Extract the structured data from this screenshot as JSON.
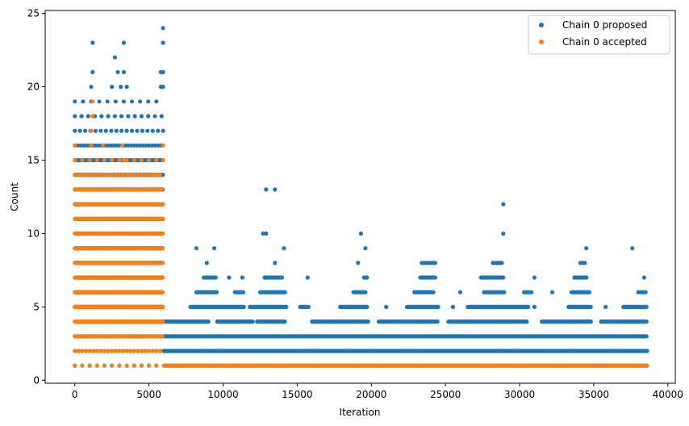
{
  "chart_data": {
    "type": "scatter",
    "title": "",
    "xlabel": "Iteration",
    "ylabel": "Count",
    "xlim": [
      -2000,
      40500
    ],
    "ylim": [
      -0.2,
      25.2
    ],
    "x_ticks": [
      0,
      5000,
      10000,
      15000,
      20000,
      25000,
      30000,
      35000,
      40000
    ],
    "x_tick_labels": [
      "0",
      "5000",
      "10000",
      "15000",
      "20000",
      "25000",
      "30000",
      "35000",
      "40000"
    ],
    "y_ticks": [
      0,
      5,
      10,
      15,
      20,
      25
    ],
    "y_tick_labels": [
      "0",
      "5",
      "10",
      "15",
      "20",
      "25"
    ],
    "grid": false,
    "legend_position": "top-right",
    "series": [
      {
        "name": "Chain 0 proposed",
        "color": "#1f77b4",
        "bands": [
          {
            "y": 1,
            "x": [
              0,
              5950
            ],
            "step": 500
          },
          {
            "y": 2,
            "x": [
              0,
              5950
            ],
            "step": 250
          },
          {
            "y": 3,
            "x": [
              0,
              5950
            ],
            "step": 120
          },
          {
            "y": 4,
            "x": [
              0,
              5950
            ],
            "step": 40
          },
          {
            "y": 5,
            "x": [
              0,
              5950
            ],
            "step": 40
          },
          {
            "y": 6,
            "x": [
              0,
              5950
            ],
            "step": 40
          },
          {
            "y": 7,
            "x": [
              0,
              5950
            ],
            "step": 40
          },
          {
            "y": 8,
            "x": [
              0,
              5950
            ],
            "step": 40
          },
          {
            "y": 9,
            "x": [
              0,
              5950
            ],
            "step": 40
          },
          {
            "y": 10,
            "x": [
              0,
              5950
            ],
            "step": 40
          },
          {
            "y": 11,
            "x": [
              0,
              5950
            ],
            "step": 40
          },
          {
            "y": 12,
            "x": [
              0,
              5950
            ],
            "step": 40
          },
          {
            "y": 13,
            "x": [
              0,
              5950
            ],
            "step": 40
          },
          {
            "y": 14,
            "x": [
              0,
              5950
            ],
            "step": 60
          },
          {
            "y": 15,
            "x": [
              0,
              5950
            ],
            "step": 150
          },
          {
            "y": 16,
            "x": [
              0,
              5950
            ],
            "step": 200
          },
          {
            "y": 17,
            "x": [
              0,
              5950
            ],
            "step": 350
          },
          {
            "y": 18,
            "x": [
              0,
              5950
            ],
            "step": 450
          },
          {
            "y": 19,
            "x": [
              0,
              5950
            ],
            "step": 550
          },
          {
            "y": 2,
            "x": [
              6000,
              38600
            ],
            "step": 40
          },
          {
            "y": 3,
            "x": [
              6000,
              38600
            ],
            "step": 80
          }
        ],
        "clusters": [
          {
            "y": 4,
            "x": [
              6000,
              9000
            ],
            "step": 60
          },
          {
            "y": 4,
            "x": [
              9600,
              12000
            ],
            "step": 60
          },
          {
            "y": 4,
            "x": [
              12300,
              14200
            ],
            "step": 60
          },
          {
            "y": 4,
            "x": [
              16000,
              19800
            ],
            "step": 60
          },
          {
            "y": 4,
            "x": [
              20500,
              24500
            ],
            "step": 60
          },
          {
            "y": 4,
            "x": [
              25200,
              30500
            ],
            "step": 60
          },
          {
            "y": 4,
            "x": [
              31500,
              34800
            ],
            "step": 60
          },
          {
            "y": 4,
            "x": [
              35500,
              38600
            ],
            "step": 60
          },
          {
            "y": 5,
            "x": [
              7800,
              11400
            ],
            "step": 60
          },
          {
            "y": 5,
            "x": [
              11800,
              14300
            ],
            "step": 60
          },
          {
            "y": 5,
            "x": [
              15200,
              15800
            ],
            "step": 80
          },
          {
            "y": 5,
            "x": [
              17900,
              19700
            ],
            "step": 60
          },
          {
            "y": 5,
            "x": [
              22400,
              24500
            ],
            "step": 60
          },
          {
            "y": 5,
            "x": [
              26500,
              30600
            ],
            "step": 60
          },
          {
            "y": 5,
            "x": [
              33300,
              34800
            ],
            "step": 60
          },
          {
            "y": 5,
            "x": [
              37000,
              38600
            ],
            "step": 60
          },
          {
            "y": 6,
            "x": [
              8200,
              9600
            ],
            "step": 80
          },
          {
            "y": 6,
            "x": [
              10800,
              11400
            ],
            "step": 80
          },
          {
            "y": 6,
            "x": [
              12500,
              14200
            ],
            "step": 80
          },
          {
            "y": 6,
            "x": [
              18800,
              19600
            ],
            "step": 80
          },
          {
            "y": 6,
            "x": [
              22900,
              24200
            ],
            "step": 80
          },
          {
            "y": 6,
            "x": [
              27600,
              29000
            ],
            "step": 80
          },
          {
            "y": 6,
            "x": [
              30300,
              30800
            ],
            "step": 100
          },
          {
            "y": 6,
            "x": [
              33500,
              34700
            ],
            "step": 80
          },
          {
            "y": 6,
            "x": [
              38000,
              38500
            ],
            "step": 100
          },
          {
            "y": 7,
            "x": [
              8700,
              9500
            ],
            "step": 100
          },
          {
            "y": 7,
            "x": [
              12800,
              14000
            ],
            "step": 90
          },
          {
            "y": 7,
            "x": [
              19500,
              19700
            ],
            "step": 100
          },
          {
            "y": 7,
            "x": [
              23300,
              24300
            ],
            "step": 100
          },
          {
            "y": 7,
            "x": [
              27400,
              28900
            ],
            "step": 100
          },
          {
            "y": 7,
            "x": [
              33700,
              34500
            ],
            "step": 100
          },
          {
            "y": 8,
            "x": [
              23400,
              24300
            ],
            "step": 150
          },
          {
            "y": 8,
            "x": [
              28200,
              28900
            ],
            "step": 120
          },
          {
            "y": 8,
            "x": [
              34100,
              34500
            ],
            "step": 150
          }
        ],
        "points": [
          [
            1200,
            23
          ],
          [
            2700,
            22
          ],
          [
            3300,
            23
          ],
          [
            5950,
            24
          ],
          [
            5950,
            23
          ],
          [
            1200,
            21
          ],
          [
            2900,
            21
          ],
          [
            3300,
            21
          ],
          [
            5800,
            21
          ],
          [
            5950,
            21
          ],
          [
            1100,
            20
          ],
          [
            2500,
            20
          ],
          [
            3100,
            20
          ],
          [
            3500,
            20
          ],
          [
            5800,
            20
          ],
          [
            5950,
            20
          ],
          [
            8200,
            9
          ],
          [
            9400,
            9
          ],
          [
            14100,
            9
          ],
          [
            19600,
            9
          ],
          [
            34500,
            9
          ],
          [
            37600,
            9
          ],
          [
            8900,
            8
          ],
          [
            13500,
            8
          ],
          [
            19100,
            8
          ],
          [
            38400,
            7
          ],
          [
            12700,
            10
          ],
          [
            12900,
            10
          ],
          [
            19300,
            10
          ],
          [
            28900,
            10
          ],
          [
            12900,
            13
          ],
          [
            13500,
            13
          ],
          [
            28900,
            12
          ],
          [
            10400,
            7
          ],
          [
            11300,
            7
          ],
          [
            15700,
            7
          ],
          [
            26000,
            6
          ],
          [
            31000,
            7
          ],
          [
            32200,
            6
          ],
          [
            9000,
            4
          ],
          [
            16500,
            4
          ],
          [
            21000,
            5
          ],
          [
            25500,
            5
          ],
          [
            31000,
            5
          ],
          [
            35800,
            5
          ]
        ]
      },
      {
        "name": "Chain 0 accepted",
        "color": "#ff7f0e",
        "bands": [
          {
            "y": 1,
            "x": [
              0,
              5950
            ],
            "step": 500
          },
          {
            "y": 2,
            "x": [
              0,
              5950
            ],
            "step": 250
          },
          {
            "y": 3,
            "x": [
              0,
              5950
            ],
            "step": 160
          },
          {
            "y": 4,
            "x": [
              0,
              5950
            ],
            "step": 60
          },
          {
            "y": 5,
            "x": [
              0,
              5950
            ],
            "step": 40
          },
          {
            "y": 6,
            "x": [
              0,
              5950
            ],
            "step": 40
          },
          {
            "y": 7,
            "x": [
              0,
              5950
            ],
            "step": 40
          },
          {
            "y": 8,
            "x": [
              0,
              5950
            ],
            "step": 40
          },
          {
            "y": 9,
            "x": [
              0,
              5950
            ],
            "step": 40
          },
          {
            "y": 10,
            "x": [
              0,
              5950
            ],
            "step": 40
          },
          {
            "y": 11,
            "x": [
              0,
              5950
            ],
            "step": 50
          },
          {
            "y": 12,
            "x": [
              0,
              5950
            ],
            "step": 70
          },
          {
            "y": 13,
            "x": [
              0,
              5950
            ],
            "step": 130
          },
          {
            "y": 14,
            "x": [
              0,
              5950
            ],
            "step": 250
          },
          {
            "y": 15,
            "x": [
              0,
              5950
            ],
            "step": 500
          },
          {
            "y": 1,
            "x": [
              6000,
              38600
            ],
            "step": 40
          }
        ],
        "clusters": [],
        "points": [
          [
            0,
            16
          ],
          [
            1100,
            16
          ],
          [
            1900,
            16
          ],
          [
            3200,
            16
          ],
          [
            5950,
            16
          ],
          [
            1100,
            17
          ],
          [
            1200,
            18
          ],
          [
            1200,
            19
          ],
          [
            3300,
            15
          ],
          [
            5950,
            15
          ]
        ]
      }
    ]
  }
}
